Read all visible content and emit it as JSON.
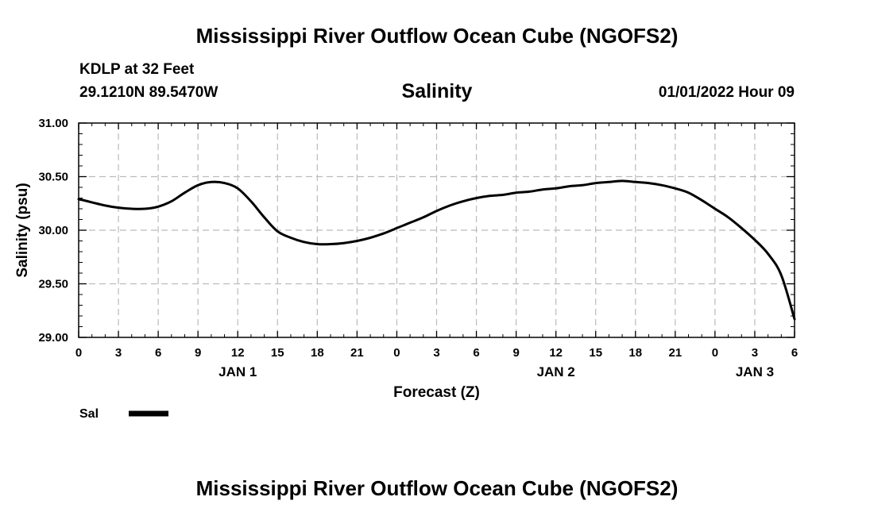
{
  "header": {
    "main_title": "Mississippi River Outflow Ocean Cube (NGOFS2)",
    "station": "KDLP at 32 Feet",
    "coords": "29.1210N  89.5470W",
    "parameter": "Salinity",
    "datetime": "01/01/2022 Hour 09"
  },
  "footer": {
    "title": "Mississippi River Outflow Ocean Cube (NGOFS2)"
  },
  "chart_data": {
    "type": "line",
    "title": "Salinity",
    "xlabel": "Forecast (Z)",
    "ylabel": "Salinity (psu)",
    "xlim": [
      0,
      54
    ],
    "ylim": [
      29.0,
      31.0
    ],
    "grid": true,
    "x_tick_labels": [
      "0",
      "3",
      "6",
      "9",
      "12",
      "15",
      "18",
      "21",
      "0",
      "3",
      "6",
      "9",
      "12",
      "15",
      "18",
      "21",
      "0",
      "3",
      "6"
    ],
    "y_tick_labels": [
      "31.00",
      "30.50",
      "30.00",
      "29.50",
      "29.00"
    ],
    "day_labels": [
      {
        "label": "JAN 1",
        "hour": 12
      },
      {
        "label": "JAN 2",
        "hour": 36
      },
      {
        "label": "JAN 3",
        "hour": 51
      }
    ],
    "legend": {
      "placement": "bottom-left",
      "label": "Sal",
      "color": "#000000"
    },
    "series": [
      {
        "name": "Sal",
        "x": [
          0,
          1,
          2,
          3,
          4,
          5,
          6,
          7,
          8,
          9,
          10,
          11,
          12,
          13,
          14,
          15,
          16,
          17,
          18,
          19,
          20,
          21,
          22,
          23,
          24,
          25,
          26,
          27,
          28,
          29,
          30,
          31,
          32,
          33,
          34,
          35,
          36,
          37,
          38,
          39,
          40,
          41,
          42,
          43,
          44,
          45,
          46,
          47,
          48,
          49,
          50,
          51,
          52,
          53,
          54
        ],
        "values": [
          30.29,
          30.26,
          30.23,
          30.21,
          30.2,
          30.2,
          30.22,
          30.27,
          30.35,
          30.42,
          30.45,
          30.44,
          30.39,
          30.27,
          30.12,
          29.99,
          29.93,
          29.89,
          29.87,
          29.87,
          29.88,
          29.9,
          29.93,
          29.97,
          30.02,
          30.07,
          30.12,
          30.18,
          30.23,
          30.27,
          30.3,
          30.32,
          30.33,
          30.35,
          30.36,
          30.38,
          30.39,
          30.41,
          30.42,
          30.44,
          30.45,
          30.46,
          30.45,
          30.44,
          30.42,
          30.39,
          30.35,
          30.28,
          30.2,
          30.12,
          30.02,
          29.91,
          29.78,
          29.58,
          29.17
        ]
      }
    ]
  }
}
